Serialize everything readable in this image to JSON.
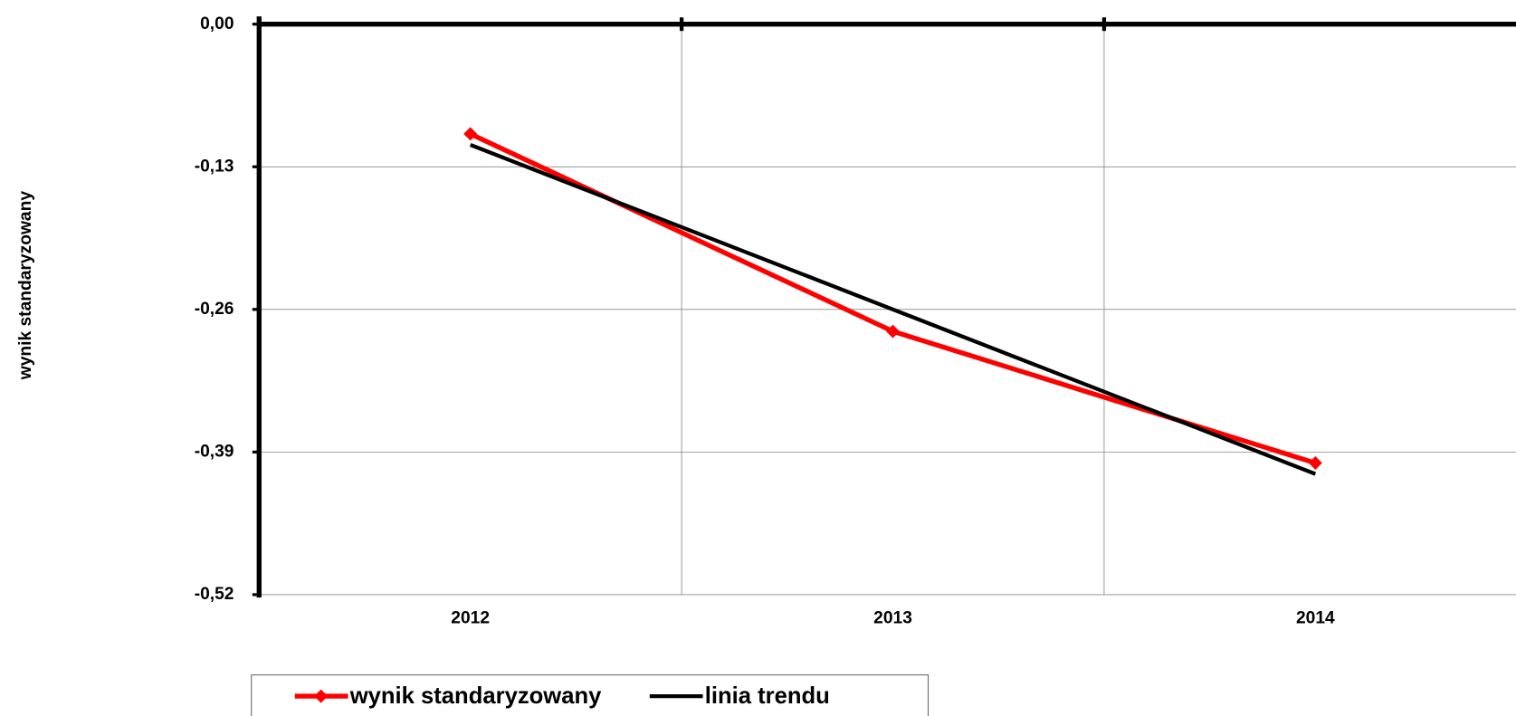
{
  "chart_data": {
    "type": "line",
    "y_label": "wynik standaryzowany",
    "categories": [
      "2012",
      "2013",
      "2014"
    ],
    "series": [
      {
        "name": "wynik standaryzowany",
        "color": "#ff0000",
        "marker": "diamond",
        "values": [
          -0.1,
          -0.28,
          -0.4
        ]
      },
      {
        "name": "linia trendu",
        "color": "#000000",
        "values": [
          -0.11,
          -0.26,
          -0.41
        ]
      }
    ],
    "ylim": [
      -0.52,
      0
    ],
    "yticks": [
      {
        "value": 0,
        "label": "0,00"
      },
      {
        "value": -0.13,
        "label": "-0,13"
      },
      {
        "value": -0.26,
        "label": "-0,26"
      },
      {
        "value": -0.39,
        "label": "-0,39"
      },
      {
        "value": -0.52,
        "label": "-0,52"
      }
    ],
    "grid": true,
    "legend": "bottom"
  }
}
